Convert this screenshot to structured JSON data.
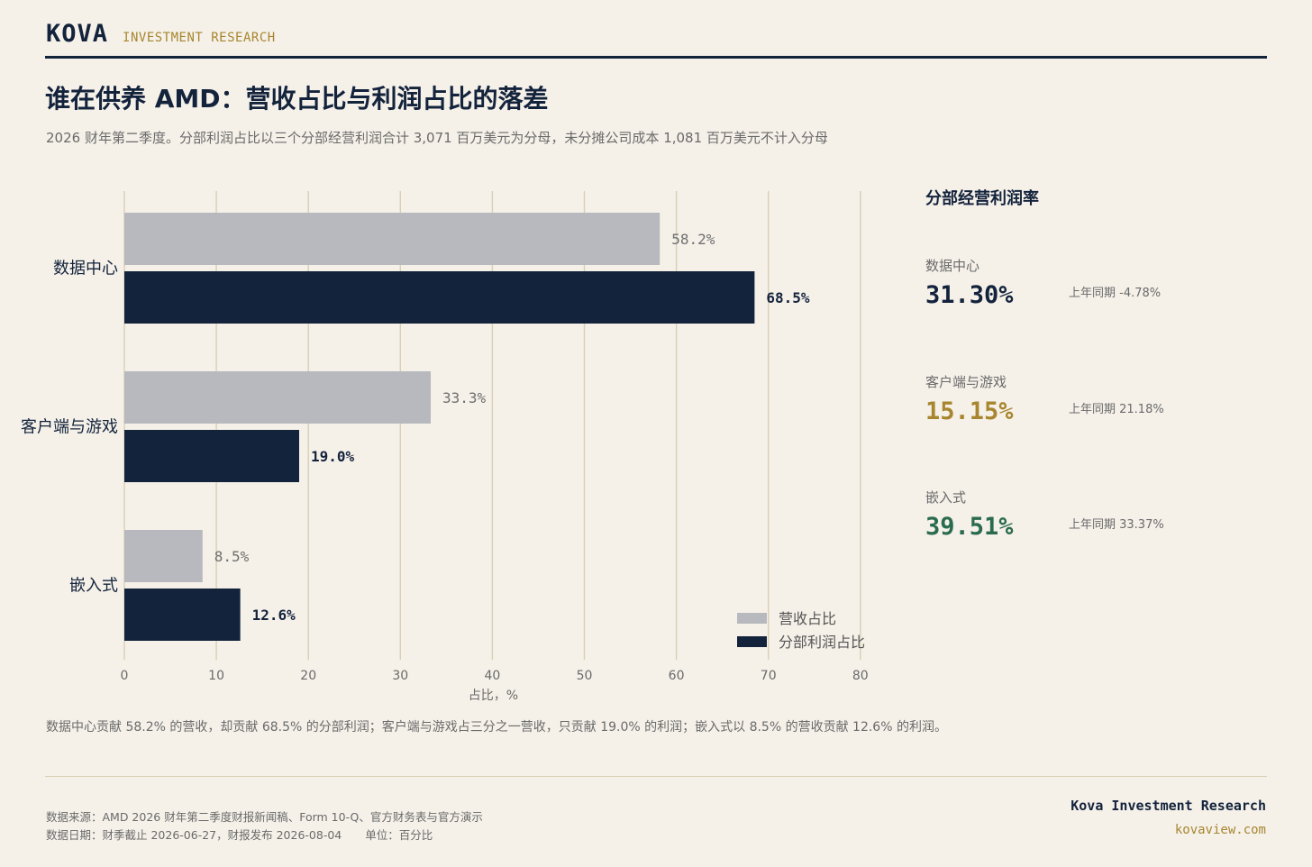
{
  "header": {
    "brand": "KOVA",
    "tagline": "INVESTMENT RESEARCH",
    "title": "谁在供养 AMD：营收占比与利润占比的落差",
    "subtitle": "2026 财年第二季度。分部利润占比以三个分部经营利润合计 3,071 百万美元为分母，未分摊公司成本 1,081 百万美元不计入分母"
  },
  "chart_data": {
    "type": "bar",
    "orientation": "horizontal",
    "categories": [
      "数据中心",
      "客户端与游戏",
      "嵌入式"
    ],
    "series": [
      {
        "name": "营收占比",
        "values": [
          58.2,
          33.3,
          8.5
        ],
        "labels": [
          "58.2%",
          "33.3%",
          "8.5%"
        ],
        "color": "#b7b9bf"
      },
      {
        "name": "分部利润占比",
        "values": [
          68.5,
          19.0,
          12.6
        ],
        "labels": [
          "68.5%",
          "19.0%",
          "12.6%"
        ],
        "color": "#14233c"
      }
    ],
    "xlabel": "占比，%",
    "xlim": [
      0,
      80
    ],
    "xticks": [
      0,
      10,
      20,
      30,
      40,
      50,
      60,
      70,
      80
    ],
    "grid": true,
    "grid_color": "#d8cfb4",
    "legend_position": "bottom-right"
  },
  "side_panel": {
    "title": "分部经营利润率",
    "metrics": [
      {
        "label": "数据中心",
        "value": "31.30%",
        "prior": "上年同期 -4.78%",
        "color": "#14233c"
      },
      {
        "label": "客户端与游戏",
        "value": "15.15%",
        "prior": "上年同期 21.18%",
        "color": "#a8862f"
      },
      {
        "label": "嵌入式",
        "value": "39.51%",
        "prior": "上年同期 33.37%",
        "color": "#2a6b4e"
      }
    ]
  },
  "takeaway": "数据中心贡献 58.2% 的营收，却贡献 68.5% 的分部利润；客户端与游戏占三分之一营收，只贡献 19.0% 的利润；嵌入式以 8.5% 的营收贡献 12.6% 的利润。",
  "footer": {
    "source": "数据来源：AMD 2026 财年第二季度财报新闻稿、Form 10-Q、官方财务表与官方演示",
    "date": "数据日期：财季截止 2026-06-27，财报发布 2026-08-04",
    "unit": "单位：百分比",
    "brand": "Kova Investment Research",
    "url": "kovaview.com"
  }
}
